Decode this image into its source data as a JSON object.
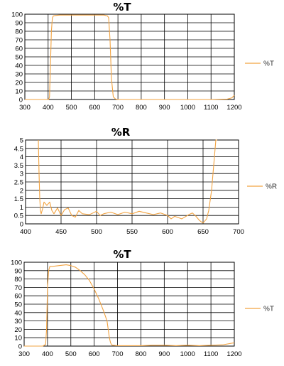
{
  "line_color": "#f2a341",
  "chart_data": [
    {
      "type": "line",
      "title": "%T",
      "xlim": [
        300,
        1200
      ],
      "ylim": [
        0,
        100
      ],
      "xticks": [
        300,
        400,
        500,
        600,
        700,
        800,
        900,
        1000,
        1100,
        1200
      ],
      "yticks": [
        0,
        10,
        20,
        30,
        40,
        50,
        60,
        70,
        80,
        90,
        100
      ],
      "grid": true,
      "legend_position": "right",
      "series": [
        {
          "name": "%T",
          "x": [
            300,
            390,
            402,
            406,
            410,
            414,
            418,
            422,
            430,
            450,
            500,
            550,
            600,
            640,
            655,
            660,
            666,
            672,
            680,
            690,
            700,
            800,
            900,
            1000,
            1100,
            1170,
            1190,
            1200
          ],
          "y": [
            0,
            0,
            0,
            3,
            40,
            80,
            95,
            98,
            98.5,
            99,
            99,
            99,
            99,
            99,
            98,
            96,
            70,
            25,
            3,
            0.5,
            0,
            0,
            0,
            0,
            0,
            0.5,
            2,
            5
          ]
        }
      ]
    },
    {
      "type": "line",
      "title": "%R",
      "xlim": [
        400,
        700
      ],
      "ylim": [
        0,
        5
      ],
      "xticks": [
        400,
        450,
        500,
        550,
        600,
        650,
        700
      ],
      "yticks": [
        0,
        0.5,
        1,
        1.5,
        2,
        2.5,
        3,
        3.5,
        4,
        4.5,
        5
      ],
      "grid": true,
      "legend_position": "right",
      "series": [
        {
          "name": "%R",
          "x": [
            418,
            419,
            420,
            421,
            422,
            424,
            426,
            430,
            434,
            437,
            440,
            445,
            450,
            455,
            460,
            465,
            470,
            475,
            480,
            490,
            500,
            505,
            510,
            520,
            530,
            540,
            550,
            560,
            570,
            580,
            590,
            600,
            605,
            610,
            620,
            630,
            635,
            640,
            645,
            650,
            655,
            658,
            662,
            665,
            667,
            668,
            670
          ],
          "y": [
            5,
            3,
            1.5,
            0.8,
            0.6,
            0.9,
            1.3,
            1.1,
            1.3,
            0.8,
            0.6,
            0.95,
            0.5,
            0.85,
            0.95,
            0.5,
            0.4,
            0.8,
            0.6,
            0.55,
            0.75,
            0.5,
            0.6,
            0.7,
            0.55,
            0.7,
            0.6,
            0.75,
            0.65,
            0.55,
            0.65,
            0.5,
            0.3,
            0.45,
            0.3,
            0.55,
            0.65,
            0.45,
            0.2,
            0.05,
            0.3,
            0.8,
            2,
            3.5,
            4.5,
            5,
            5
          ]
        }
      ]
    },
    {
      "type": "line",
      "title": "%T",
      "xlim": [
        300,
        1200
      ],
      "ylim": [
        0,
        100
      ],
      "xticks": [
        300,
        400,
        500,
        600,
        700,
        800,
        900,
        1000,
        1100,
        1200
      ],
      "yticks": [
        0,
        10,
        20,
        30,
        40,
        50,
        60,
        70,
        80,
        90,
        100
      ],
      "grid": true,
      "legend_position": "right",
      "series": [
        {
          "name": "%T",
          "x": [
            300,
            380,
            392,
            396,
            400,
            405,
            410,
            420,
            450,
            480,
            500,
            520,
            540,
            560,
            580,
            600,
            620,
            640,
            655,
            660,
            665,
            670,
            675,
            680,
            700,
            750,
            800,
            850,
            900,
            950,
            1000,
            1050,
            1100,
            1150,
            1200
          ],
          "y": [
            0,
            0,
            2,
            20,
            70,
            90,
            95,
            95,
            96,
            97,
            96,
            94,
            90,
            85,
            78,
            68,
            56,
            42,
            30,
            20,
            10,
            4,
            1.5,
            1,
            0.5,
            0.5,
            0.5,
            1,
            1,
            0.5,
            1,
            0.5,
            1,
            1.5,
            4
          ]
        }
      ]
    }
  ]
}
